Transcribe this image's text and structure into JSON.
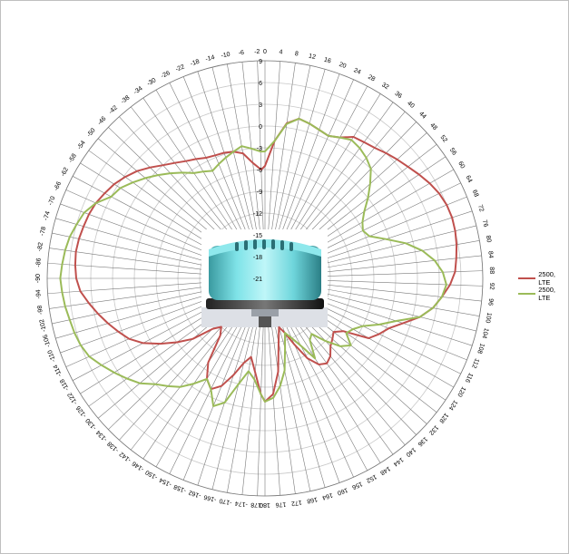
{
  "chart_data": {
    "type": "radar",
    "angles_deg": [
      0,
      4,
      8,
      12,
      16,
      20,
      24,
      28,
      32,
      36,
      40,
      44,
      48,
      52,
      56,
      60,
      64,
      68,
      72,
      76,
      80,
      84,
      88,
      92,
      96,
      100,
      104,
      108,
      112,
      116,
      120,
      124,
      128,
      132,
      136,
      140,
      144,
      148,
      152,
      156,
      160,
      164,
      168,
      172,
      176,
      180,
      -178,
      -174,
      -170,
      -166,
      -162,
      -158,
      -154,
      -150,
      -146,
      -142,
      -138,
      -134,
      -130,
      -126,
      -122,
      -118,
      -114,
      -110,
      -106,
      -102,
      -98,
      -94,
      -90,
      -86,
      -82,
      -78,
      -74,
      -70,
      -66,
      -62,
      -58,
      -54,
      -50,
      -46,
      -42,
      -38,
      -34,
      -30,
      -26,
      -22,
      -18,
      -14,
      -10,
      -6,
      -2
    ],
    "angle_tick_labels": [
      "0",
      "4",
      "8",
      "12",
      "16",
      "20",
      "24",
      "28",
      "32",
      "36",
      "40",
      "44",
      "48",
      "52",
      "56",
      "60",
      "64",
      "68",
      "72",
      "76",
      "80",
      "84",
      "88",
      "92",
      "96",
      "100",
      "104",
      "108",
      "112",
      "116",
      "120",
      "124",
      "128",
      "132",
      "136",
      "140",
      "144",
      "148",
      "152",
      "156",
      "160",
      "164",
      "168",
      "172",
      "176",
      "180",
      "-178",
      "-174",
      "-170",
      "-166",
      "-162",
      "-158",
      "-154",
      "-150",
      "-146",
      "-142",
      "-138",
      "-134",
      "-130",
      "-126",
      "-122",
      "-118",
      "-114",
      "-110",
      "-106",
      "-102",
      "-98",
      "-94",
      "-90",
      "-86",
      "-82",
      "-78",
      "-74",
      "-70",
      "-66",
      "-62",
      "-58",
      "-54",
      "-50",
      "-46",
      "-42",
      "-38",
      "-34",
      "-30",
      "-26",
      "-22",
      "-18",
      "-14",
      "-10",
      "-6",
      "-2"
    ],
    "r_ticks": [
      9,
      6,
      3,
      0,
      -3,
      -6,
      -9,
      -12,
      -15,
      -18,
      -21
    ],
    "r_tick_labels": [
      "9",
      "6",
      "3",
      "0",
      "-3",
      "-6",
      "-9",
      "-12",
      "-15",
      "-18",
      "-21"
    ],
    "r_range": [
      -21,
      9
    ],
    "series": [
      {
        "name": "2500, LTE",
        "color": "#c0504d",
        "values": [
          -5.5,
          -2,
          0.6,
          1.5,
          1.2,
          0.8,
          0.5,
          1,
          2,
          2.2,
          2.5,
          3,
          3.5,
          4,
          4.6,
          5.2,
          5.7,
          6,
          6.1,
          6,
          5.8,
          5.5,
          5.2,
          4.5,
          3.5,
          2.5,
          1,
          -1,
          -2.6,
          -3.5,
          -4.5,
          -8,
          -9,
          -8.5,
          -8,
          -7,
          -6.5,
          -7,
          -8.5,
          -11,
          -13,
          -14,
          -12,
          -8,
          -5,
          -4,
          -5,
          -8,
          -10,
          -9,
          -7,
          -5,
          -4,
          -5,
          -7,
          -11,
          -12,
          -11,
          -8,
          -6,
          -4,
          -2,
          -0.5,
          0.5,
          1.5,
          2.5,
          3.5,
          4.5,
          5,
          5.2,
          5.3,
          5.2,
          5,
          4.8,
          4.5,
          4,
          3.5,
          2.8,
          2,
          1,
          0,
          -0.8,
          -1.5,
          -2,
          -2.5,
          -2.7,
          -2.8,
          -3,
          -3.5,
          -5,
          -6
        ]
      },
      {
        "name": "2500, LTE",
        "color": "#9bbb59",
        "values": [
          -3.5,
          -2,
          0.5,
          1.5,
          1.2,
          0.8,
          0.5,
          1,
          1.5,
          1.2,
          0.7,
          0,
          -1.5,
          -3,
          -4.5,
          -5.5,
          -6,
          -5.5,
          -3.5,
          -1,
          1,
          2.5,
          3.5,
          4,
          3.5,
          2.5,
          1,
          -2,
          -4,
          -6,
          -7,
          -7.5,
          -6,
          -7,
          -9,
          -11,
          -10.5,
          -8,
          -10.5,
          -12,
          -13,
          -11,
          -8,
          -6,
          -4.5,
          -4,
          -5,
          -7,
          -8,
          -6,
          -3,
          -2,
          -4,
          -5,
          -3.5,
          -2,
          -1,
          0,
          1.5,
          2.5,
          3.5,
          4.5,
          5.5,
          6,
          6.3,
          6.5,
          6.8,
          7,
          7.2,
          7,
          6.8,
          6.5,
          6,
          5.5,
          4.5,
          3,
          2.5,
          1.5,
          0.5,
          -0.5,
          -1.5,
          -2.5,
          -3.5,
          -4,
          -4.5,
          -4,
          -3.5,
          -3,
          -2.5,
          -3,
          -3.5
        ]
      }
    ],
    "grid": true,
    "legend": "right"
  }
}
